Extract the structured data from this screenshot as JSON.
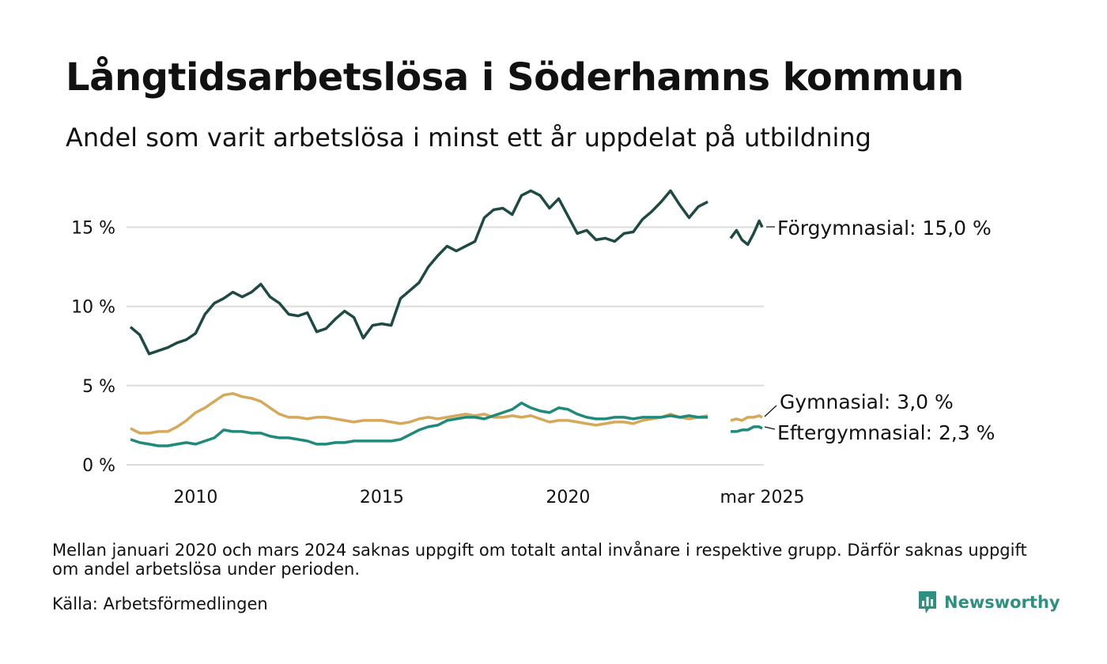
{
  "title": "Långtidsarbetslösa i Söderhamns kommun",
  "subtitle": "Andel som varit arbetslösa i minst ett år uppdelat på utbildning",
  "footnote": "Mellan januari 2020 och mars 2024 saknas uppgift om totalt antal invånare i respektive grupp. Därför saknas uppgift om andel arbetslösa under perioden.",
  "source": "Källa: Arbetsförmedlingen",
  "brand": "Newsworthy",
  "colors": {
    "forgymnasial": "#1e4a43",
    "gymnasial": "#d6a85a",
    "eftergymnasial": "#1f8a7a",
    "grid": "#dcdcdc",
    "brand": "#2f8f80"
  },
  "chart_data": {
    "type": "line",
    "title": "Långtidsarbetslösa i Söderhamns kommun",
    "xlabel": "",
    "ylabel": "",
    "ylim": [
      0,
      18
    ],
    "yticks": [
      {
        "value": 0,
        "label": "0 %"
      },
      {
        "value": 5,
        "label": "5 %"
      },
      {
        "value": 10,
        "label": "10 %"
      },
      {
        "value": 15,
        "label": "15 %"
      }
    ],
    "xticks": [
      {
        "value": 2010,
        "label": "2010"
      },
      {
        "value": 2015,
        "label": "2015"
      },
      {
        "value": 2020,
        "label": "2020"
      },
      {
        "value": 2025.17,
        "label": "mar 2025"
      }
    ],
    "grid": true,
    "x_axis_note": "compressed gap between 2021 and 2024",
    "series": [
      {
        "name": "Förgymnasial",
        "end_label": "Förgymnasial: 15,0 %",
        "segments": [
          [
            [
              2008.25,
              8.7
            ],
            [
              2008.5,
              8.2
            ],
            [
              2008.75,
              7.0
            ],
            [
              2009.0,
              7.2
            ],
            [
              2009.25,
              7.4
            ],
            [
              2009.5,
              7.7
            ],
            [
              2009.75,
              7.9
            ],
            [
              2010.0,
              8.3
            ],
            [
              2010.25,
              9.5
            ],
            [
              2010.5,
              10.2
            ],
            [
              2010.75,
              10.5
            ],
            [
              2011.0,
              10.9
            ],
            [
              2011.25,
              10.6
            ],
            [
              2011.5,
              10.9
            ],
            [
              2011.75,
              11.4
            ],
            [
              2012.0,
              10.6
            ],
            [
              2012.25,
              10.2
            ],
            [
              2012.5,
              9.5
            ],
            [
              2012.75,
              9.4
            ],
            [
              2013.0,
              9.6
            ],
            [
              2013.25,
              8.4
            ],
            [
              2013.5,
              8.6
            ],
            [
              2013.75,
              9.2
            ],
            [
              2014.0,
              9.7
            ],
            [
              2014.25,
              9.3
            ],
            [
              2014.5,
              8.0
            ],
            [
              2014.75,
              8.8
            ],
            [
              2015.0,
              8.9
            ],
            [
              2015.25,
              8.8
            ],
            [
              2015.5,
              10.5
            ],
            [
              2015.75,
              11.0
            ],
            [
              2016.0,
              11.5
            ],
            [
              2016.25,
              12.5
            ],
            [
              2016.5,
              13.2
            ],
            [
              2016.75,
              13.8
            ],
            [
              2017.0,
              13.5
            ],
            [
              2017.25,
              13.8
            ],
            [
              2017.5,
              14.1
            ],
            [
              2017.75,
              15.6
            ],
            [
              2018.0,
              16.1
            ],
            [
              2018.25,
              16.2
            ],
            [
              2018.5,
              15.8
            ],
            [
              2018.75,
              17.0
            ],
            [
              2019.0,
              17.3
            ],
            [
              2019.25,
              17.0
            ],
            [
              2019.5,
              16.2
            ],
            [
              2019.75,
              16.8
            ],
            [
              2020.0,
              15.7
            ],
            [
              2020.25,
              14.6
            ],
            [
              2020.5,
              14.8
            ],
            [
              2020.75,
              14.2
            ],
            [
              2021.0,
              14.3
            ],
            [
              2021.25,
              14.1
            ],
            [
              2021.5,
              14.6
            ],
            [
              2021.75,
              14.7
            ],
            [
              2022.0,
              15.5
            ],
            [
              2022.25,
              16.0
            ],
            [
              2022.5,
              16.6
            ],
            [
              2022.75,
              17.3
            ],
            [
              2023.0,
              16.4
            ],
            [
              2023.25,
              15.6
            ],
            [
              2023.5,
              16.3
            ],
            [
              2023.75,
              16.6
            ]
          ],
          [
            [
              2024.25,
              14.3
            ],
            [
              2024.42,
              14.8
            ],
            [
              2024.58,
              14.2
            ],
            [
              2024.75,
              13.9
            ],
            [
              2024.92,
              14.6
            ],
            [
              2025.08,
              15.4
            ],
            [
              2025.17,
              15.0
            ]
          ]
        ]
      },
      {
        "name": "Gymnasial",
        "end_label": "Gymnasial:  3,0 %",
        "segments": [
          [
            [
              2008.25,
              2.3
            ],
            [
              2008.5,
              2.0
            ],
            [
              2008.75,
              2.0
            ],
            [
              2009.0,
              2.1
            ],
            [
              2009.25,
              2.1
            ],
            [
              2009.5,
              2.4
            ],
            [
              2009.75,
              2.8
            ],
            [
              2010.0,
              3.3
            ],
            [
              2010.25,
              3.6
            ],
            [
              2010.5,
              4.0
            ],
            [
              2010.75,
              4.4
            ],
            [
              2011.0,
              4.5
            ],
            [
              2011.25,
              4.3
            ],
            [
              2011.5,
              4.2
            ],
            [
              2011.75,
              4.0
            ],
            [
              2012.0,
              3.6
            ],
            [
              2012.25,
              3.2
            ],
            [
              2012.5,
              3.0
            ],
            [
              2012.75,
              3.0
            ],
            [
              2013.0,
              2.9
            ],
            [
              2013.25,
              3.0
            ],
            [
              2013.5,
              3.0
            ],
            [
              2013.75,
              2.9
            ],
            [
              2014.0,
              2.8
            ],
            [
              2014.25,
              2.7
            ],
            [
              2014.5,
              2.8
            ],
            [
              2014.75,
              2.8
            ],
            [
              2015.0,
              2.8
            ],
            [
              2015.25,
              2.7
            ],
            [
              2015.5,
              2.6
            ],
            [
              2015.75,
              2.7
            ],
            [
              2016.0,
              2.9
            ],
            [
              2016.25,
              3.0
            ],
            [
              2016.5,
              2.9
            ],
            [
              2016.75,
              3.0
            ],
            [
              2017.0,
              3.1
            ],
            [
              2017.25,
              3.2
            ],
            [
              2017.5,
              3.1
            ],
            [
              2017.75,
              3.2
            ],
            [
              2018.0,
              3.0
            ],
            [
              2018.25,
              3.0
            ],
            [
              2018.5,
              3.1
            ],
            [
              2018.75,
              3.0
            ],
            [
              2019.0,
              3.1
            ],
            [
              2019.25,
              2.9
            ],
            [
              2019.5,
              2.7
            ],
            [
              2019.75,
              2.8
            ],
            [
              2020.0,
              2.8
            ],
            [
              2020.25,
              2.7
            ],
            [
              2020.5,
              2.6
            ],
            [
              2020.75,
              2.5
            ],
            [
              2021.0,
              2.6
            ],
            [
              2021.25,
              2.7
            ],
            [
              2021.5,
              2.7
            ],
            [
              2021.75,
              2.6
            ],
            [
              2022.0,
              2.8
            ],
            [
              2022.25,
              2.9
            ],
            [
              2022.5,
              3.0
            ],
            [
              2022.75,
              3.2
            ],
            [
              2023.0,
              3.0
            ],
            [
              2023.25,
              2.9
            ],
            [
              2023.5,
              3.0
            ],
            [
              2023.75,
              3.1
            ]
          ],
          [
            [
              2024.25,
              2.8
            ],
            [
              2024.42,
              2.9
            ],
            [
              2024.58,
              2.8
            ],
            [
              2024.75,
              3.0
            ],
            [
              2024.92,
              3.0
            ],
            [
              2025.08,
              3.1
            ],
            [
              2025.17,
              3.0
            ]
          ]
        ]
      },
      {
        "name": "Eftergymnasial",
        "end_label": "Eftergymnasial:  2,3 %",
        "segments": [
          [
            [
              2008.25,
              1.6
            ],
            [
              2008.5,
              1.4
            ],
            [
              2008.75,
              1.3
            ],
            [
              2009.0,
              1.2
            ],
            [
              2009.25,
              1.2
            ],
            [
              2009.5,
              1.3
            ],
            [
              2009.75,
              1.4
            ],
            [
              2010.0,
              1.3
            ],
            [
              2010.25,
              1.5
            ],
            [
              2010.5,
              1.7
            ],
            [
              2010.75,
              2.2
            ],
            [
              2011.0,
              2.1
            ],
            [
              2011.25,
              2.1
            ],
            [
              2011.5,
              2.0
            ],
            [
              2011.75,
              2.0
            ],
            [
              2012.0,
              1.8
            ],
            [
              2012.25,
              1.7
            ],
            [
              2012.5,
              1.7
            ],
            [
              2012.75,
              1.6
            ],
            [
              2013.0,
              1.5
            ],
            [
              2013.25,
              1.3
            ],
            [
              2013.5,
              1.3
            ],
            [
              2013.75,
              1.4
            ],
            [
              2014.0,
              1.4
            ],
            [
              2014.25,
              1.5
            ],
            [
              2014.5,
              1.5
            ],
            [
              2014.75,
              1.5
            ],
            [
              2015.0,
              1.5
            ],
            [
              2015.25,
              1.5
            ],
            [
              2015.5,
              1.6
            ],
            [
              2015.75,
              1.9
            ],
            [
              2016.0,
              2.2
            ],
            [
              2016.25,
              2.4
            ],
            [
              2016.5,
              2.5
            ],
            [
              2016.75,
              2.8
            ],
            [
              2017.0,
              2.9
            ],
            [
              2017.25,
              3.0
            ],
            [
              2017.5,
              3.0
            ],
            [
              2017.75,
              2.9
            ],
            [
              2018.0,
              3.1
            ],
            [
              2018.25,
              3.3
            ],
            [
              2018.5,
              3.5
            ],
            [
              2018.75,
              3.9
            ],
            [
              2019.0,
              3.6
            ],
            [
              2019.25,
              3.4
            ],
            [
              2019.5,
              3.3
            ],
            [
              2019.75,
              3.6
            ],
            [
              2020.0,
              3.5
            ],
            [
              2020.25,
              3.2
            ],
            [
              2020.5,
              3.0
            ],
            [
              2020.75,
              2.9
            ],
            [
              2021.0,
              2.9
            ],
            [
              2021.25,
              3.0
            ],
            [
              2021.5,
              3.0
            ],
            [
              2021.75,
              2.9
            ],
            [
              2022.0,
              3.0
            ],
            [
              2022.25,
              3.0
            ],
            [
              2022.5,
              3.0
            ],
            [
              2022.75,
              3.1
            ],
            [
              2023.0,
              3.0
            ],
            [
              2023.25,
              3.1
            ],
            [
              2023.5,
              3.0
            ],
            [
              2023.75,
              3.0
            ]
          ],
          [
            [
              2024.25,
              2.1
            ],
            [
              2024.42,
              2.1
            ],
            [
              2024.58,
              2.2
            ],
            [
              2024.75,
              2.2
            ],
            [
              2024.92,
              2.4
            ],
            [
              2025.08,
              2.4
            ],
            [
              2025.17,
              2.3
            ]
          ]
        ]
      }
    ]
  }
}
